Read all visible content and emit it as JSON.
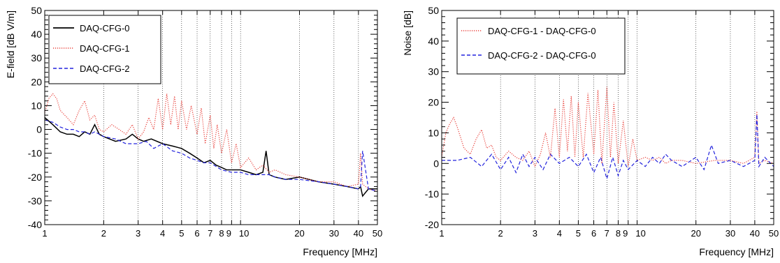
{
  "chart_data": [
    {
      "type": "line",
      "xlabel": "Frequency [MHz]",
      "ylabel": "E-field [dB V/m]",
      "xscale": "log",
      "xlim": [
        1,
        50
      ],
      "ylim": [
        -40,
        50
      ],
      "x_ticks": [
        1,
        2,
        3,
        4,
        5,
        6,
        7,
        8,
        9,
        10,
        20,
        30,
        40,
        50
      ],
      "x_tick_labels": [
        "1",
        "2",
        "3",
        "4",
        "5",
        "6",
        "7",
        "8",
        "9",
        "10",
        "20",
        "30",
        "40",
        "50"
      ],
      "y_ticks": [
        -40,
        -30,
        -20,
        -10,
        0,
        10,
        20,
        30,
        40,
        50
      ],
      "y_tick_labels": [
        "-40",
        "-30",
        "-20",
        "-10",
        "0",
        "10",
        "20",
        "30",
        "40",
        "50"
      ],
      "vertical_grid": true,
      "legend_position": "top-left",
      "series": [
        {
          "name": "DAQ-CFG-0",
          "color": "#000000",
          "style": "solid",
          "x": [
            1,
            1.1,
            1.2,
            1.3,
            1.4,
            1.5,
            1.6,
            1.7,
            1.8,
            1.9,
            2,
            2.3,
            2.6,
            2.8,
            3,
            3.2,
            3.5,
            4,
            4.5,
            5,
            5.5,
            6,
            6.5,
            7,
            7.5,
            8,
            8.5,
            9,
            10,
            11,
            12,
            13,
            13.5,
            14,
            15,
            17,
            20,
            25,
            30,
            35,
            40,
            41,
            42,
            45,
            50
          ],
          "y": [
            5,
            2,
            -1,
            -2,
            -2,
            -3,
            -1,
            -2,
            2,
            -2,
            -3,
            -5,
            -4,
            -2,
            -4,
            -5,
            -4,
            -6,
            -7,
            -8,
            -10,
            -12,
            -14,
            -13,
            -15,
            -16,
            -17,
            -17,
            -17,
            -18,
            -19,
            -18,
            -9,
            -19,
            -20,
            -21,
            -20,
            -22,
            -23,
            -24,
            -25,
            -24,
            -28,
            -25,
            -25
          ]
        },
        {
          "name": "DAQ-CFG-1",
          "color": "#e8403a",
          "style": "dotted",
          "x": [
            1,
            1.05,
            1.1,
            1.15,
            1.2,
            1.3,
            1.4,
            1.5,
            1.6,
            1.7,
            1.8,
            1.9,
            2,
            2.2,
            2.4,
            2.6,
            2.8,
            3,
            3.2,
            3.4,
            3.6,
            3.8,
            4,
            4.2,
            4.4,
            4.6,
            4.8,
            5,
            5.3,
            5.6,
            6,
            6.3,
            6.6,
            7,
            7.3,
            7.6,
            8,
            8.5,
            9,
            9.5,
            10,
            11,
            12,
            13,
            14,
            15,
            17,
            20,
            25,
            30,
            35,
            40,
            41,
            42,
            45,
            50
          ],
          "y": [
            7,
            13,
            15,
            13,
            8,
            5,
            2,
            8,
            12,
            4,
            6,
            0,
            -1,
            2,
            0,
            -2,
            2,
            -4,
            -1,
            5,
            0,
            13,
            0,
            15,
            2,
            14,
            0,
            12,
            0,
            10,
            -2,
            9,
            -6,
            6,
            -8,
            2,
            -10,
            0,
            -14,
            -6,
            -16,
            -12,
            -17,
            -15,
            -18,
            -17,
            -19,
            -20,
            -22,
            -22,
            -24,
            -23,
            -10,
            -23,
            -25,
            -26
          ]
        },
        {
          "name": "DAQ-CFG-2",
          "color": "#2222dd",
          "style": "dashed",
          "x": [
            1,
            1.1,
            1.2,
            1.3,
            1.4,
            1.5,
            1.6,
            1.7,
            1.8,
            1.9,
            2,
            2.3,
            2.6,
            3,
            3.3,
            3.6,
            4,
            4.5,
            5,
            5.5,
            6,
            6.5,
            7,
            8,
            9,
            10,
            11,
            12,
            13,
            14,
            15,
            17,
            20,
            25,
            30,
            35,
            40,
            41,
            42,
            45,
            50
          ],
          "y": [
            4,
            3,
            1,
            0,
            0,
            -1,
            -1,
            -2,
            -1,
            -2,
            -3,
            -4,
            -6,
            -6,
            -5,
            -8,
            -6,
            -9,
            -10,
            -12,
            -13,
            -14,
            -14,
            -17,
            -18,
            -18,
            -19,
            -19,
            -19,
            -19,
            -20,
            -21,
            -21,
            -22,
            -23,
            -24,
            -25,
            -24,
            -9,
            -25,
            -26
          ]
        }
      ]
    },
    {
      "type": "line",
      "xlabel": "Frequency [MHz]",
      "ylabel": "Noise [dB]",
      "xscale": "log",
      "xlim": [
        1,
        50
      ],
      "ylim": [
        -20,
        50
      ],
      "x_ticks": [
        1,
        2,
        3,
        4,
        5,
        6,
        7,
        8,
        9,
        10,
        20,
        30,
        40,
        50
      ],
      "x_tick_labels": [
        "1",
        "2",
        "3",
        "4",
        "5",
        "6",
        "7",
        "8",
        "9",
        "10",
        "20",
        "30",
        "40",
        "50"
      ],
      "y_ticks": [
        -20,
        -10,
        0,
        10,
        20,
        30,
        40,
        50
      ],
      "y_tick_labels": [
        "-20",
        "-10",
        "0",
        "10",
        "20",
        "30",
        "40",
        "50"
      ],
      "vertical_grid": true,
      "legend_position": "top-left",
      "series": [
        {
          "name": "DAQ-CFG-1 - DAQ-CFG-0",
          "color": "#e8403a",
          "style": "dotted",
          "x": [
            1,
            1.05,
            1.1,
            1.15,
            1.2,
            1.3,
            1.4,
            1.5,
            1.6,
            1.7,
            1.8,
            1.9,
            2,
            2.2,
            2.4,
            2.6,
            2.8,
            3,
            3.2,
            3.4,
            3.6,
            3.8,
            4,
            4.2,
            4.4,
            4.6,
            4.8,
            5,
            5.3,
            5.6,
            6,
            6.3,
            6.6,
            7,
            7.3,
            7.6,
            8,
            8.5,
            9,
            9.5,
            10,
            11,
            12,
            13,
            14,
            15,
            17,
            20,
            25,
            30,
            35,
            40,
            41,
            42,
            45,
            50
          ],
          "y": [
            2,
            10,
            13,
            15,
            12,
            5,
            3,
            8,
            11,
            5,
            6,
            2,
            1,
            4,
            2,
            1,
            4,
            -1,
            3,
            10,
            2,
            18,
            2,
            21,
            4,
            22,
            2,
            20,
            2,
            23,
            3,
            24,
            0,
            25,
            2,
            20,
            0,
            14,
            -1,
            8,
            1,
            2,
            1,
            2,
            0,
            1,
            1,
            0,
            1,
            1,
            0,
            2,
            17,
            0,
            1,
            0
          ]
        },
        {
          "name": "DAQ-CFG-2 - DAQ-CFG-0",
          "color": "#2222dd",
          "style": "dashed",
          "x": [
            1,
            1.2,
            1.4,
            1.6,
            1.8,
            2,
            2.2,
            2.4,
            2.6,
            2.8,
            3,
            3.3,
            3.6,
            4,
            4.5,
            5,
            5.5,
            6,
            6.5,
            7,
            7.5,
            8,
            8.5,
            9,
            10,
            11,
            12,
            13,
            14,
            15,
            17,
            20,
            22,
            24,
            26,
            30,
            35,
            40,
            41,
            42,
            45,
            50
          ],
          "y": [
            1,
            1,
            2,
            -1,
            3,
            -2,
            2,
            -3,
            3,
            -1,
            2,
            -2,
            3,
            0,
            2,
            -1,
            3,
            -3,
            2,
            -5,
            2,
            -4,
            1,
            -2,
            1,
            -1,
            2,
            0,
            3,
            1,
            -1,
            2,
            -2,
            6,
            0,
            1,
            -1,
            1,
            16,
            -1,
            2,
            -1
          ]
        }
      ]
    }
  ]
}
